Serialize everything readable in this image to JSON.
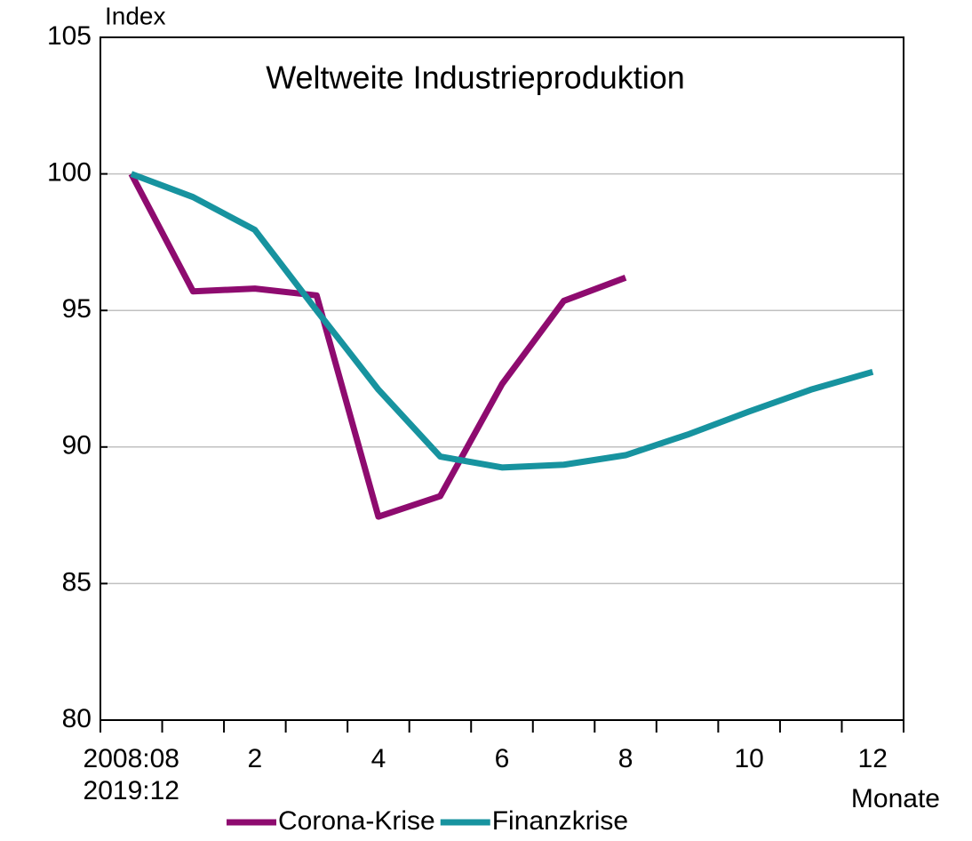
{
  "chart_data": {
    "type": "line",
    "title": "Weltweite Industrieproduktion",
    "y_axis_label": "Index",
    "x_axis_label": "Monate",
    "categories": [
      "2008:08\n2019:12",
      null,
      "2",
      null,
      "4",
      null,
      "6",
      null,
      "8",
      null,
      "10",
      null,
      "12"
    ],
    "series": [
      {
        "name": "Corona-Krise",
        "color": "#8e0b6f",
        "values": [
          100,
          95.7,
          95.8,
          95.55,
          87.45,
          88.2,
          92.3,
          95.35,
          96.2,
          null,
          null,
          null,
          null
        ]
      },
      {
        "name": "Finanzkrise",
        "color": "#17939f",
        "values": [
          100,
          99.15,
          97.95,
          95.0,
          92.1,
          89.65,
          89.25,
          89.35,
          89.7,
          90.45,
          91.3,
          92.1,
          92.75
        ]
      }
    ],
    "ylim": [
      80,
      105
    ],
    "yticks": [
      80,
      85,
      90,
      95,
      100,
      105
    ],
    "grid": true,
    "legend": "bottom"
  }
}
